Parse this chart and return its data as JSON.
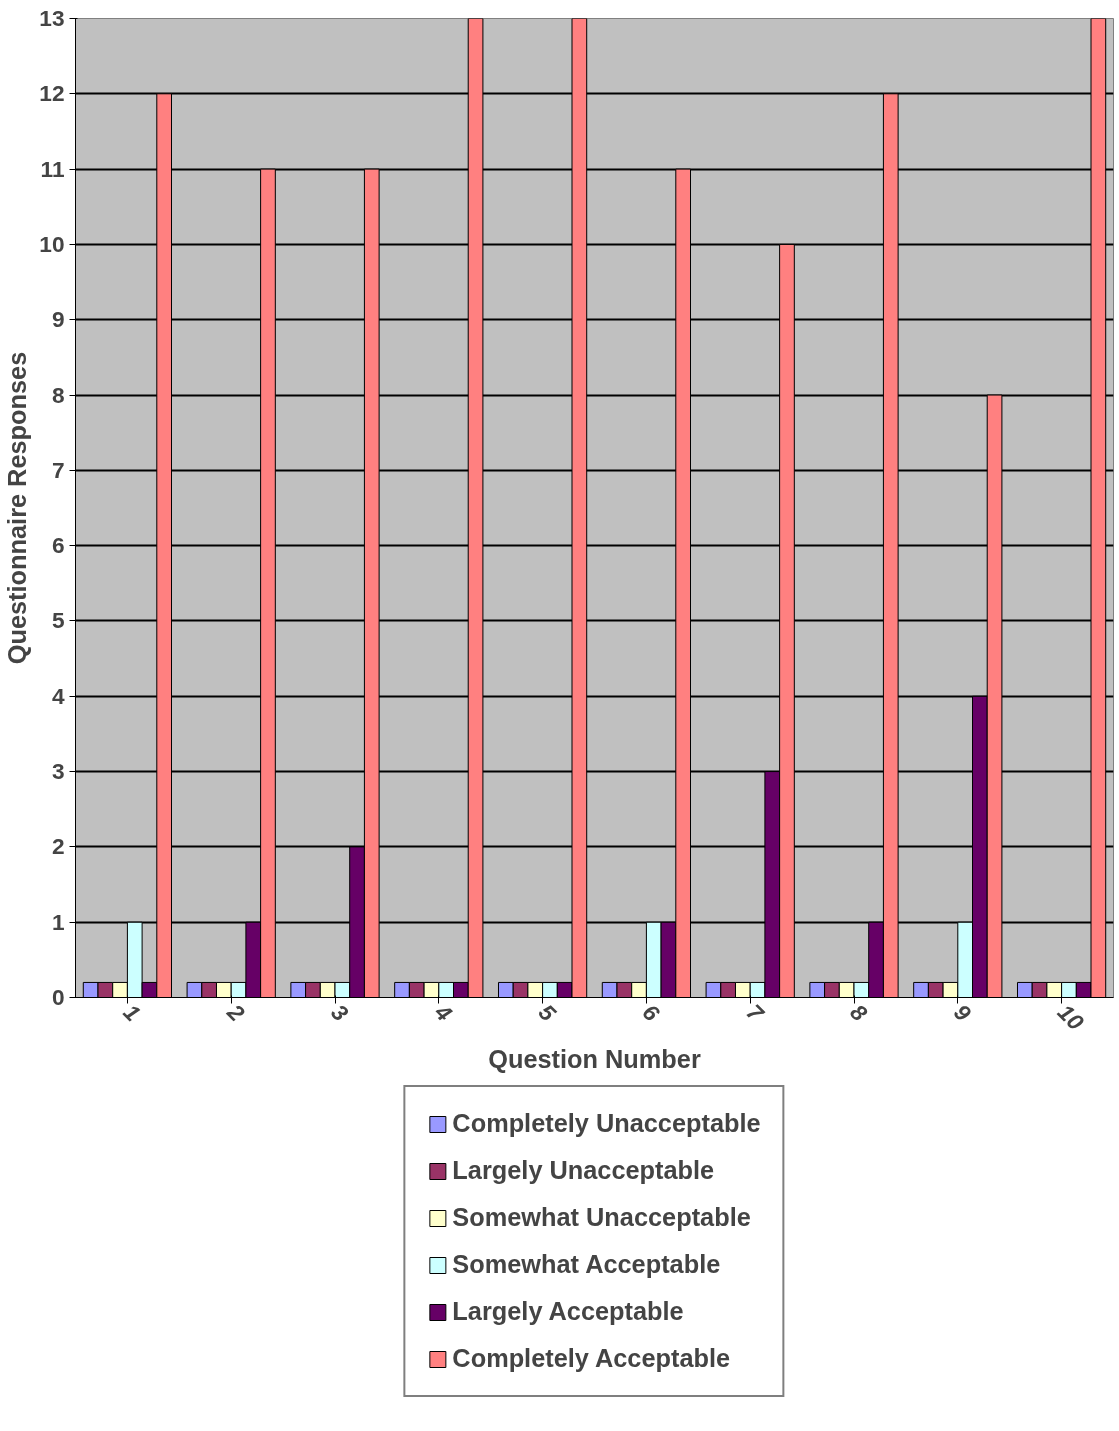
{
  "chart_data": {
    "type": "bar",
    "xlabel": "Question Number",
    "ylabel": "Questionnaire Responses",
    "categories": [
      "1",
      "2",
      "3",
      "4",
      "5",
      "6",
      "7",
      "8",
      "9",
      "10"
    ],
    "series": [
      {
        "name": "Completely Unacceptable",
        "color": "#9999ff",
        "values": [
          0.2,
          0.2,
          0.2,
          0.2,
          0.2,
          0.2,
          0.2,
          0.2,
          0.2,
          0.2
        ]
      },
      {
        "name": "Largely Unacceptable",
        "color": "#993366",
        "values": [
          0.2,
          0.2,
          0.2,
          0.2,
          0.2,
          0.2,
          0.2,
          0.2,
          0.2,
          0.2
        ]
      },
      {
        "name": "Somewhat Unacceptable",
        "color": "#ffffcc",
        "values": [
          0.2,
          0.2,
          0.2,
          0.2,
          0.2,
          0.2,
          0.2,
          0.2,
          0.2,
          0.2
        ]
      },
      {
        "name": "Somewhat Acceptable",
        "color": "#ccffff",
        "values": [
          1,
          0.2,
          0.2,
          0.2,
          0.2,
          1,
          0.2,
          0.2,
          1,
          0.2
        ]
      },
      {
        "name": "Largely Acceptable",
        "color": "#660066",
        "values": [
          0.2,
          1,
          2,
          0.2,
          0.2,
          1,
          3,
          1,
          4,
          0.2
        ]
      },
      {
        "name": "Completely Acceptable",
        "color": "#ff8080",
        "values": [
          12,
          11,
          11,
          13,
          13,
          11,
          10,
          12,
          8,
          13
        ]
      }
    ],
    "ylim": [
      0,
      13
    ],
    "yticks": [
      0,
      1,
      2,
      3,
      4,
      5,
      6,
      7,
      8,
      9,
      10,
      11,
      12,
      13
    ],
    "grid": "y",
    "legend": "bottom"
  }
}
